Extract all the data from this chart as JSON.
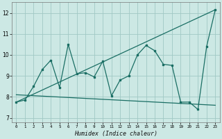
{
  "xlabel": "Humidex (Indice chaleur)",
  "bg_color": "#cce8e4",
  "grid_color": "#a0c8c4",
  "line_color": "#1a6e64",
  "xlim": [
    -0.5,
    23.5
  ],
  "ylim": [
    6.8,
    12.5
  ],
  "xtick_vals": [
    0,
    1,
    2,
    3,
    4,
    5,
    6,
    7,
    8,
    9,
    10,
    11,
    12,
    13,
    14,
    15,
    16,
    17,
    18,
    19,
    20,
    21,
    22,
    23
  ],
  "xtick_labels": [
    "0",
    "1",
    "2",
    "3",
    "4",
    "5",
    "6",
    "7",
    "8",
    "9",
    "10",
    "11",
    "12",
    "13",
    "14",
    "15",
    "16",
    "17",
    "18",
    "19",
    "20",
    "21",
    "22",
    "23"
  ],
  "ytick_vals": [
    7,
    8,
    9,
    10,
    11,
    12
  ],
  "ytick_labels": [
    "7",
    "8",
    "9",
    "10",
    "11",
    "12"
  ],
  "curve1_x": [
    0,
    1,
    2,
    3,
    4,
    5,
    6,
    7,
    8,
    9,
    10,
    11,
    12,
    13,
    14,
    15,
    16,
    17,
    18,
    19,
    20,
    21,
    22,
    23
  ],
  "curve1_y": [
    7.75,
    7.85,
    8.5,
    9.3,
    9.75,
    8.45,
    10.5,
    9.1,
    9.15,
    8.95,
    9.7,
    8.05,
    8.8,
    9.0,
    10.0,
    10.45,
    10.2,
    9.55,
    9.5,
    7.75,
    7.75,
    7.4,
    10.4,
    12.15
  ],
  "curve2_x": [
    0,
    23
  ],
  "curve2_y": [
    7.75,
    12.15
  ],
  "curve3_x": [
    0,
    23
  ],
  "curve3_y": [
    8.1,
    7.6
  ]
}
